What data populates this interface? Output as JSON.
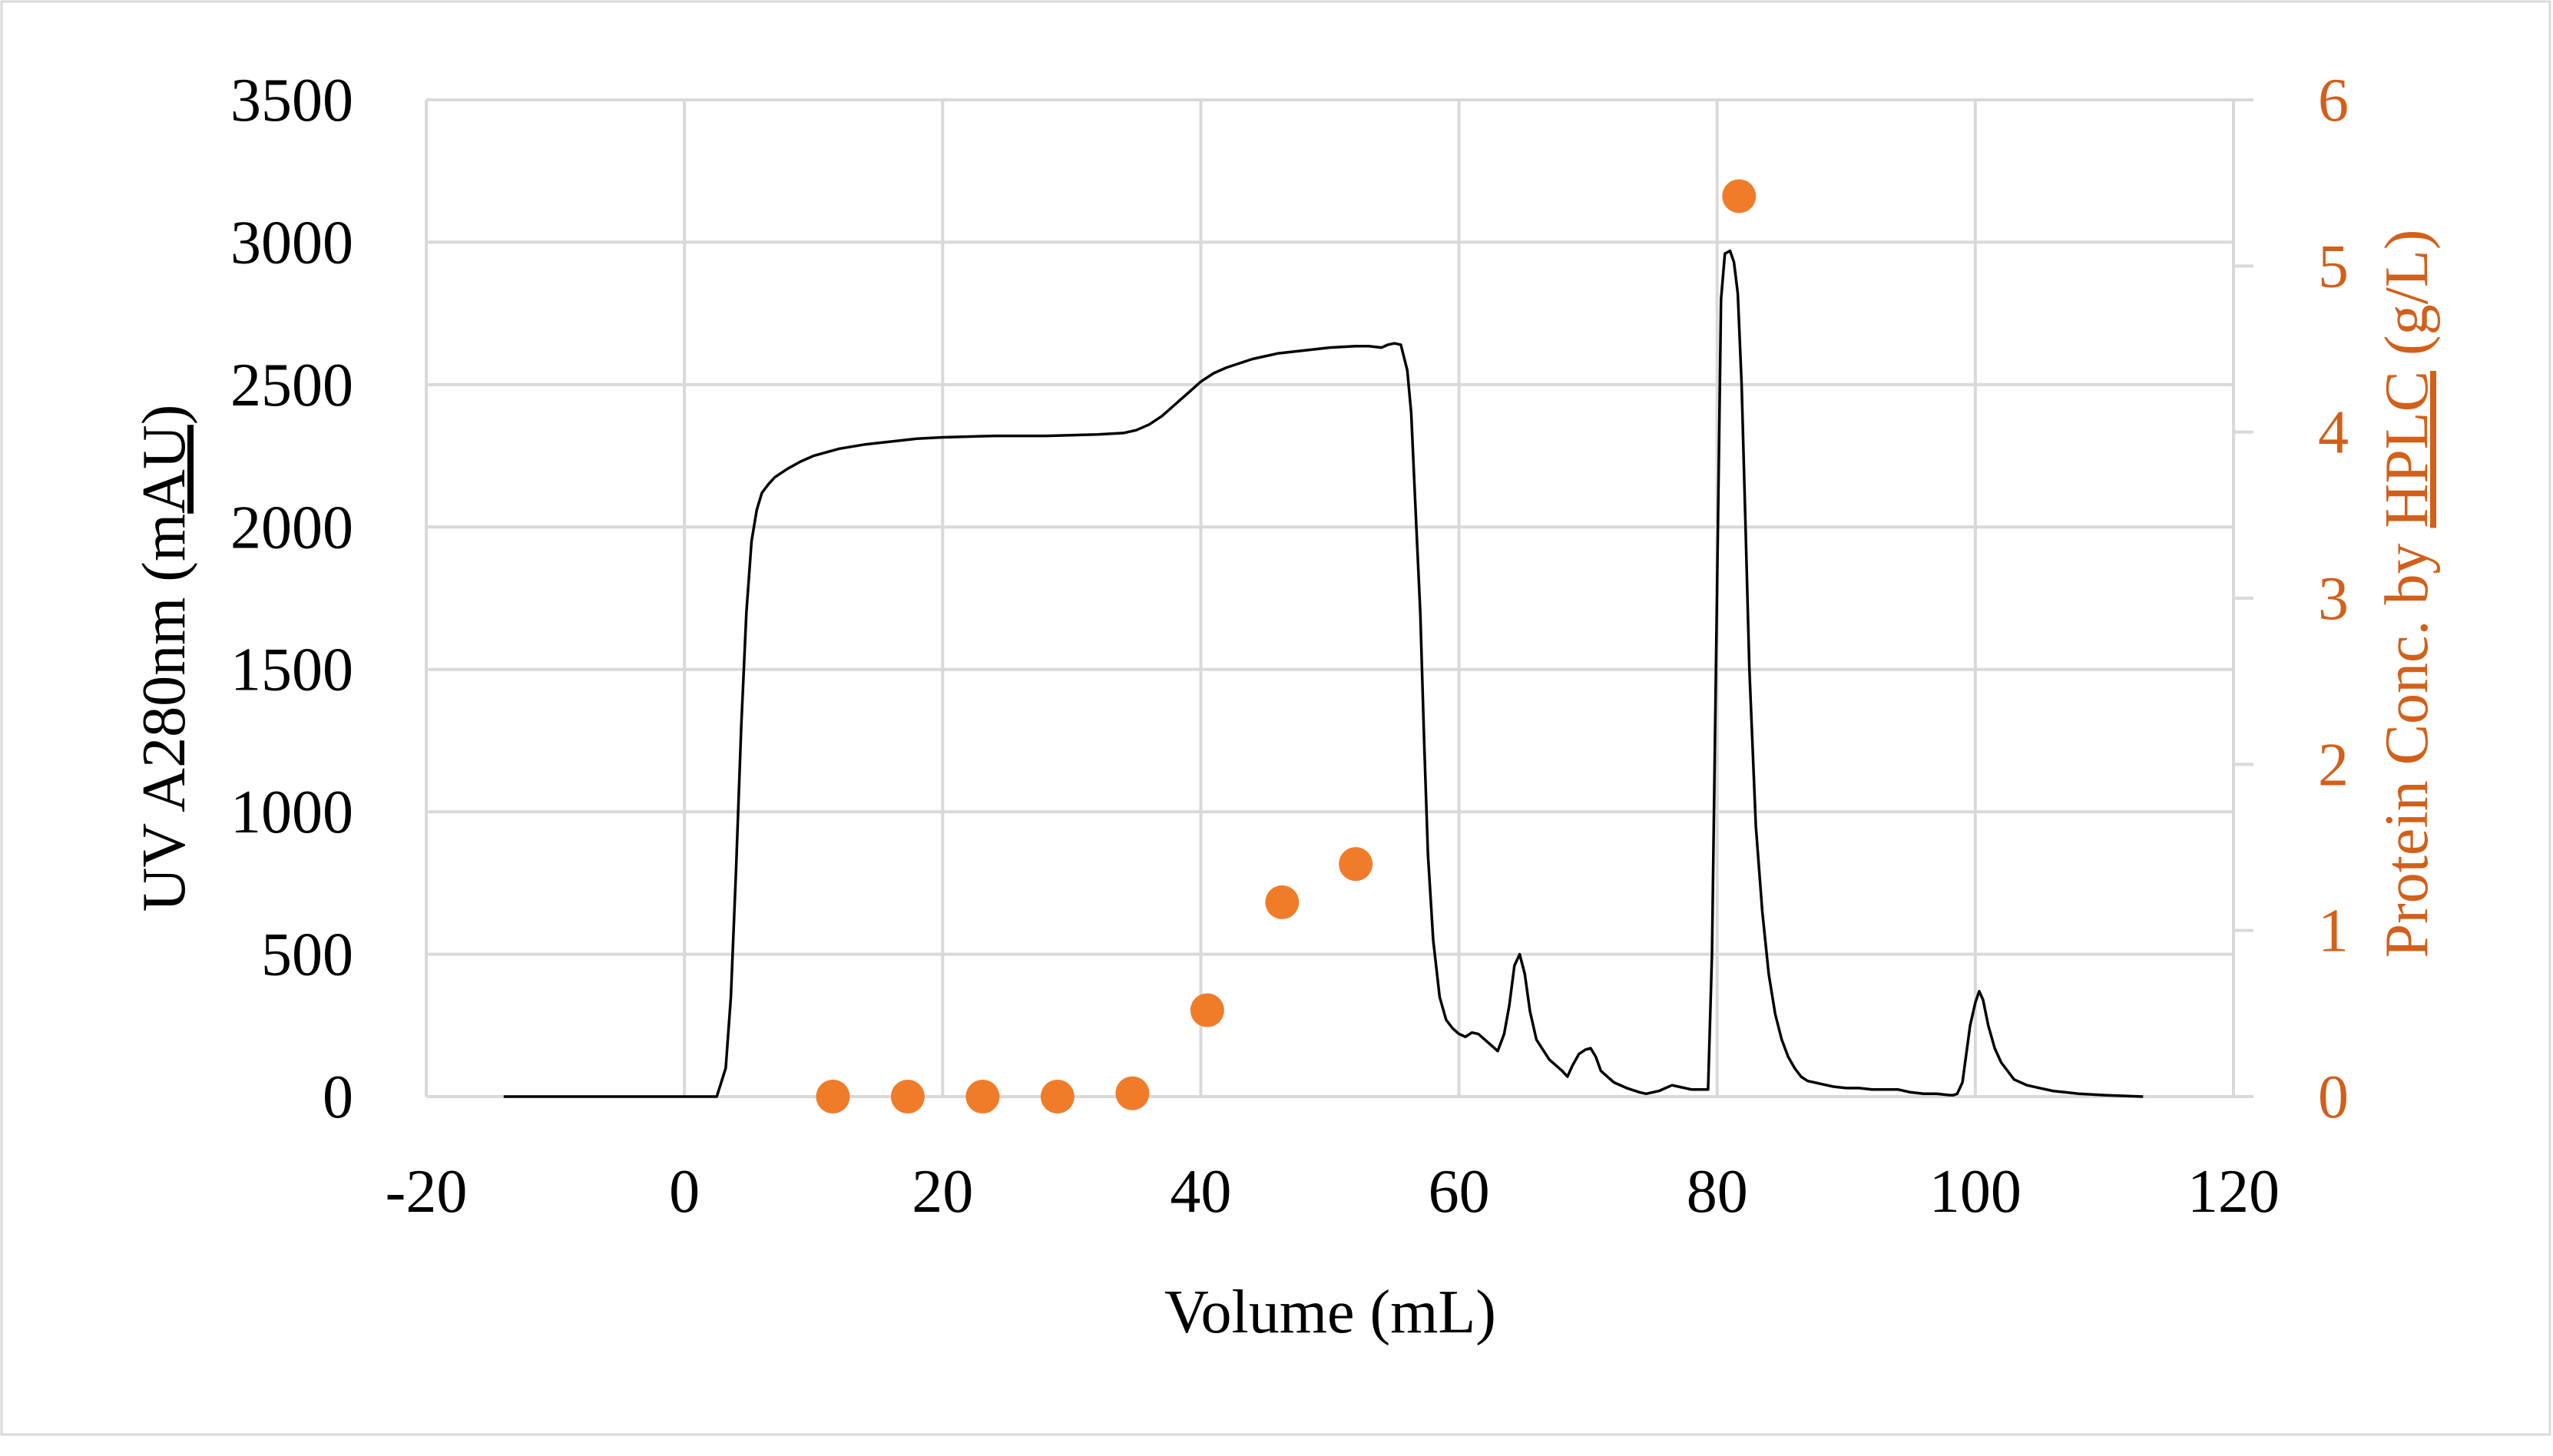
{
  "colors": {
    "uv": "#000000",
    "protein": "#F07C2A",
    "grid": "#D9D9D9",
    "axis": "#D9D9D9",
    "frame": "#D9D9D9",
    "right_axis_text": "#D2601A",
    "underline": "#C00000",
    "text": "#000000"
  },
  "chart_data": {
    "type": "line",
    "title": "",
    "xlabel": "Volume (mL)",
    "ylabel": {
      "prefix": "UV A280nm (m",
      "underlined": "AU",
      "suffix": ")"
    },
    "y2label": {
      "prefix": "Protein Conc. by ",
      "underlined": "HPLC",
      "suffix": " (g/L)"
    },
    "xlim": [
      -20,
      120
    ],
    "ylim": [
      0,
      3500
    ],
    "y2lim": [
      0,
      6
    ],
    "xticks": [
      -20,
      0,
      20,
      40,
      60,
      80,
      100,
      120
    ],
    "yticks": [
      0,
      500,
      1000,
      1500,
      2000,
      2500,
      3000,
      3500
    ],
    "y2ticks": [
      0,
      1,
      2,
      3,
      4,
      5,
      6
    ],
    "grid": true,
    "series": [
      {
        "name": "UV A280nm",
        "type": "line",
        "axis": "left",
        "color": "#000000",
        "x": [
          -14,
          -5,
          2.5,
          3.2,
          3.6,
          4,
          4.4,
          4.8,
          5.2,
          5.6,
          6,
          6.5,
          7,
          8,
          9,
          10,
          12,
          14,
          16,
          18,
          20,
          24,
          28,
          32,
          34,
          35,
          36,
          37,
          38,
          39,
          40,
          41,
          42,
          44,
          46,
          48,
          50,
          52,
          53,
          54,
          54.5,
          55,
          55.5,
          56,
          56.3,
          56.6,
          57,
          57.3,
          57.6,
          58,
          58.5,
          59,
          59.5,
          60,
          60.5,
          61,
          61.5,
          62,
          62.5,
          63,
          63.5,
          63.9,
          64.3,
          64.7,
          65.1,
          65.5,
          66,
          67,
          68,
          68.4,
          68.8,
          69.3,
          69.8,
          70.2,
          70.6,
          71,
          72,
          73,
          74,
          74.5,
          75,
          75.5,
          76,
          76.5,
          77,
          78,
          79,
          79.3,
          79.6,
          80,
          80.3,
          80.6,
          81,
          81.3,
          81.6,
          81.9,
          82.2,
          82.5,
          83,
          83.5,
          84,
          84.5,
          85,
          85.5,
          86,
          86.5,
          87,
          88,
          89,
          90,
          91,
          92,
          93,
          94,
          95,
          96,
          97,
          98,
          98.3,
          98.6,
          99,
          99.3,
          99.6,
          100,
          100.3,
          100.6,
          101,
          101.5,
          102,
          102.5,
          103,
          104,
          105,
          106,
          107,
          108,
          110,
          113
        ],
        "y": [
          0,
          0,
          0,
          100,
          350,
          800,
          1300,
          1700,
          1950,
          2060,
          2120,
          2150,
          2175,
          2205,
          2230,
          2250,
          2275,
          2290,
          2300,
          2310,
          2315,
          2320,
          2320,
          2325,
          2330,
          2340,
          2360,
          2390,
          2430,
          2470,
          2510,
          2540,
          2560,
          2590,
          2610,
          2620,
          2630,
          2635,
          2635,
          2630,
          2640,
          2645,
          2640,
          2550,
          2400,
          2100,
          1700,
          1250,
          850,
          550,
          350,
          270,
          240,
          220,
          210,
          225,
          220,
          200,
          180,
          160,
          220,
          320,
          460,
          500,
          430,
          300,
          200,
          130,
          90,
          70,
          110,
          150,
          165,
          170,
          140,
          90,
          50,
          30,
          15,
          10,
          15,
          20,
          30,
          40,
          35,
          25,
          25,
          25,
          500,
          1800,
          2800,
          2960,
          2970,
          2930,
          2820,
          2500,
          2000,
          1500,
          950,
          650,
          430,
          290,
          200,
          140,
          100,
          70,
          55,
          45,
          35,
          30,
          30,
          25,
          25,
          25,
          15,
          10,
          10,
          5,
          5,
          10,
          50,
          150,
          250,
          330,
          370,
          340,
          250,
          170,
          120,
          90,
          60,
          40,
          30,
          20,
          15,
          10,
          5,
          0
        ]
      },
      {
        "name": "Protein Conc. by HPLC",
        "type": "scatter",
        "axis": "right",
        "color": "#F07C2A",
        "x": [
          11.5,
          17.3,
          23.1,
          28.9,
          34.7,
          40.5,
          46.3,
          52,
          81.7
        ],
        "y": [
          0,
          0,
          0,
          0,
          0.02,
          0.52,
          1.17,
          1.4,
          5.42
        ]
      }
    ]
  }
}
